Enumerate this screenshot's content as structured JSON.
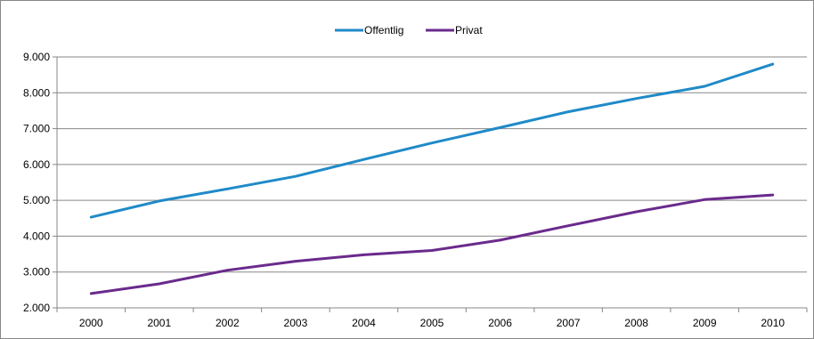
{
  "chart_data": {
    "type": "line",
    "title": "",
    "xlabel": "",
    "ylabel": "",
    "categories": [
      "2000",
      "2001",
      "2002",
      "2003",
      "2004",
      "2005",
      "2006",
      "2007",
      "2008",
      "2009",
      "2010"
    ],
    "ylim": [
      2000,
      9000
    ],
    "yticks": [
      2000,
      3000,
      4000,
      5000,
      6000,
      7000,
      8000,
      9000
    ],
    "ytick_labels": [
      "2.000",
      "3.000",
      "4.000",
      "5.000",
      "6.000",
      "7.000",
      "8.000",
      "9.000"
    ],
    "grid": "horizontal",
    "legend_position": "top-center",
    "series": [
      {
        "name": "Offentlig",
        "color": "#1f8ac8",
        "values": [
          4530,
          4980,
          5320,
          5670,
          6140,
          6600,
          7030,
          7470,
          7840,
          8180,
          8800
        ]
      },
      {
        "name": "Privat",
        "color": "#6a2a8c",
        "values": [
          2400,
          2670,
          3050,
          3300,
          3480,
          3600,
          3890,
          4290,
          4680,
          5020,
          5150
        ]
      }
    ]
  }
}
